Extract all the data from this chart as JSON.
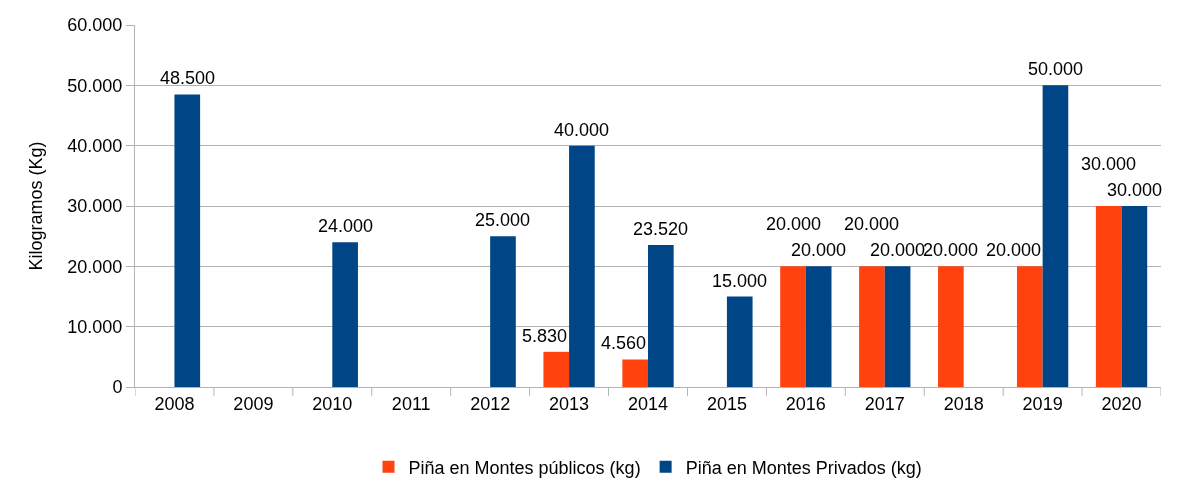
{
  "chart_data": {
    "type": "bar",
    "ylabel": "Kilogramos (Kg)",
    "categories": [
      "2008",
      "2009",
      "2010",
      "2011",
      "2012",
      "2013",
      "2014",
      "2015",
      "2016",
      "2017",
      "2018",
      "2019",
      "2020"
    ],
    "series": [
      {
        "name": "Piña en Montes públicos (kg)",
        "color": "#ff420e",
        "values": [
          null,
          null,
          null,
          null,
          null,
          5830,
          4560,
          null,
          20000,
          20000,
          20000,
          20000,
          30000
        ],
        "value_labels": [
          null,
          null,
          null,
          null,
          null,
          "5.830",
          "4.560",
          null,
          "20.000",
          "20.000",
          "20.000",
          "20.000",
          "30.000"
        ]
      },
      {
        "name": "Piña en Montes Privados (kg)",
        "color": "#004586",
        "values": [
          48500,
          null,
          24000,
          null,
          25000,
          40000,
          23520,
          15000,
          20000,
          20000,
          null,
          50000,
          30000
        ],
        "value_labels": [
          "48.500",
          null,
          "24.000",
          null,
          "25.000",
          "40.000",
          "23.520",
          "15.000",
          "20.000",
          "20.000",
          null,
          "50.000",
          "30.000"
        ]
      }
    ],
    "ylim": [
      0,
      60000
    ],
    "yticks": [
      {
        "value": 0,
        "label": "0"
      },
      {
        "value": 10000,
        "label": "10.000"
      },
      {
        "value": 20000,
        "label": "20.000"
      },
      {
        "value": 30000,
        "label": "30.000"
      },
      {
        "value": 40000,
        "label": "40.000"
      },
      {
        "value": 50000,
        "label": "50.000"
      },
      {
        "value": 60000,
        "label": "60.000"
      }
    ],
    "grid": "y",
    "legend": "bottom"
  }
}
